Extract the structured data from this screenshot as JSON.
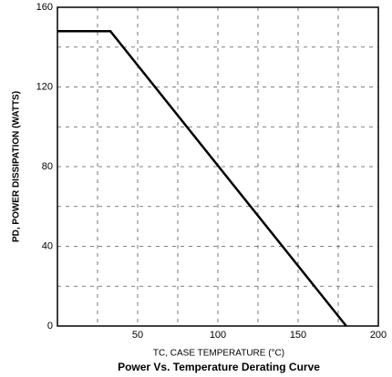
{
  "chart_data": {
    "type": "line",
    "title": "Power Vs. Temperature Derating Curve",
    "xlabel": "TC, CASE TEMPERATURE (°C)",
    "ylabel": "PD, POWER DISSIPATION (WATTS)",
    "x": [
      0,
      33,
      180
    ],
    "series": [
      {
        "color": "#000000",
        "values": [
          148,
          148,
          0
        ]
      }
    ],
    "xlim": [
      0,
      200
    ],
    "xticks": [
      50,
      100,
      150,
      200
    ],
    "minor_xticks": [
      25,
      75,
      125,
      175
    ],
    "ylim": [
      0,
      160
    ],
    "yticks": [
      0,
      40,
      80,
      120,
      160
    ],
    "minor_yticks": [
      20,
      60,
      100,
      140
    ],
    "grid": true
  }
}
